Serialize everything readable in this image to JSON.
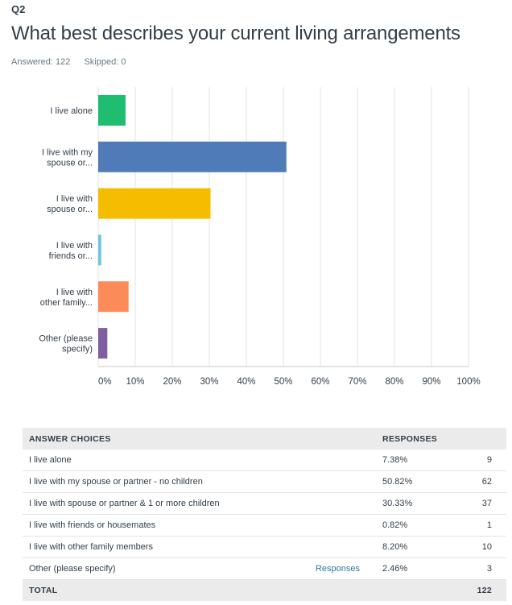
{
  "question": {
    "number": "Q2",
    "title": "What best describes your current living arrangements",
    "answered_label": "Answered: 122",
    "skipped_label": "Skipped: 0"
  },
  "colors": {
    "series": [
      "#1ebd6f",
      "#4f7cb8",
      "#f5bd00",
      "#6dc5df",
      "#fb8c59",
      "#7f5fa0"
    ],
    "grid": "#e3e3e3"
  },
  "chart_data": {
    "type": "bar",
    "orientation": "horizontal",
    "categories": [
      [
        "I live alone"
      ],
      [
        "I live with my",
        "spouse or..."
      ],
      [
        "I live with",
        "spouse or..."
      ],
      [
        "I live with",
        "friends or..."
      ],
      [
        "I live with",
        "other family..."
      ],
      [
        "Other (please",
        "specify)"
      ]
    ],
    "values": [
      7.38,
      50.82,
      30.33,
      0.82,
      8.2,
      2.46
    ],
    "xlim": [
      0,
      100
    ],
    "xticks": [
      "0%",
      "10%",
      "20%",
      "30%",
      "40%",
      "50%",
      "60%",
      "70%",
      "80%",
      "90%",
      "100%"
    ],
    "grid": true
  },
  "table": {
    "headers": {
      "choices": "ANSWER CHOICES",
      "responses": "RESPONSES"
    },
    "rows": [
      {
        "choice": "I live alone",
        "link": "",
        "pct": "7.38%",
        "count": "9"
      },
      {
        "choice": "I live with my spouse or partner - no children",
        "link": "",
        "pct": "50.82%",
        "count": "62"
      },
      {
        "choice": "I live with spouse or partner & 1 or more children",
        "link": "",
        "pct": "30.33%",
        "count": "37"
      },
      {
        "choice": "I live with friends or housemates",
        "link": "",
        "pct": "0.82%",
        "count": "1"
      },
      {
        "choice": "I live with other family members",
        "link": "",
        "pct": "8.20%",
        "count": "10"
      },
      {
        "choice": "Other (please specify)",
        "link": "Responses",
        "pct": "2.46%",
        "count": "3"
      }
    ],
    "total": {
      "label": "TOTAL",
      "count": "122"
    }
  }
}
